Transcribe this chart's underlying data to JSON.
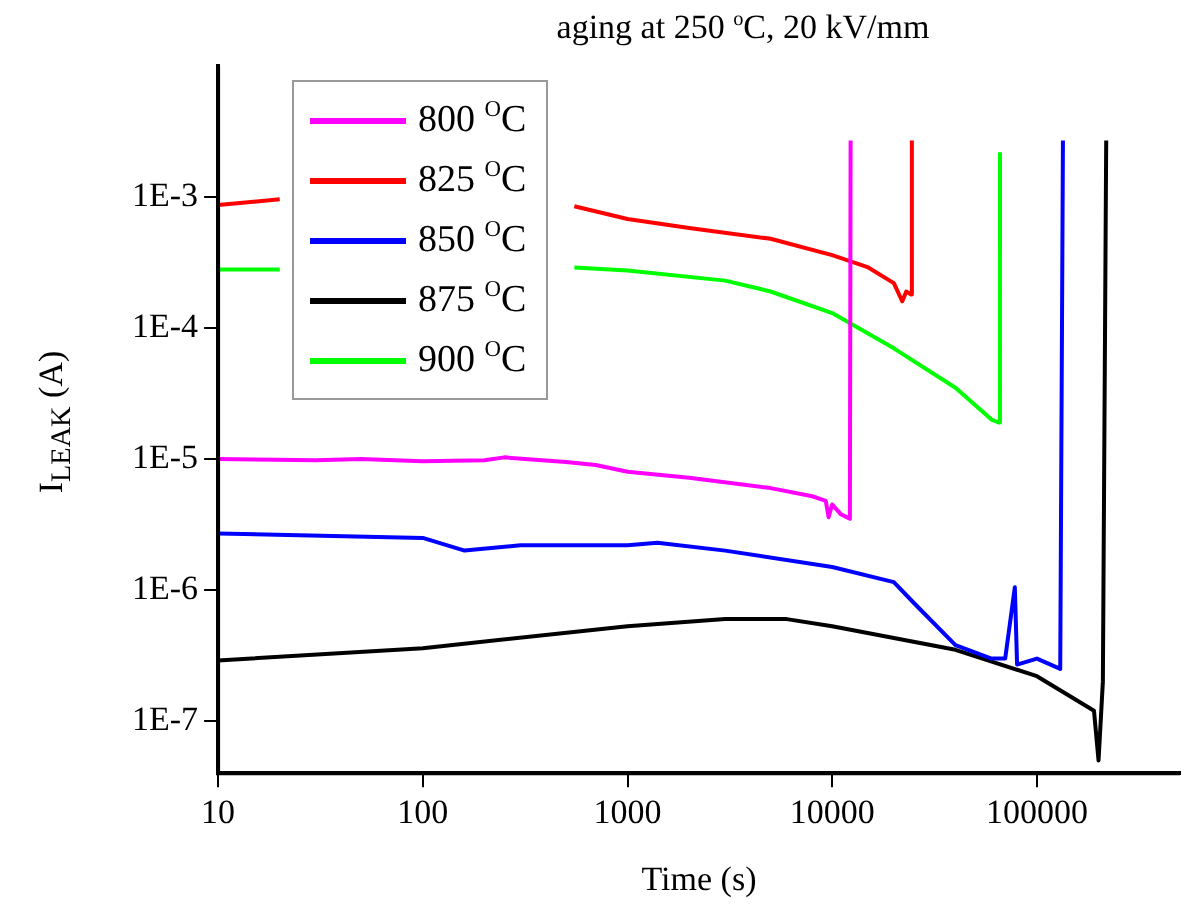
{
  "chart_data": {
    "type": "line",
    "title": "aging at 250 $^{o}$C,  20 kV/mm",
    "xlabel": "Time (s)",
    "ylabel": "I$_{LEAK}$ (A)",
    "log": "xy",
    "xlim": [
      10,
      500000
    ],
    "xticks": [
      10,
      100,
      1000,
      10000,
      100000
    ],
    "ylim": [
      4e-08,
      0.01
    ],
    "yticks": [
      {
        "value": 0.001,
        "label": "1E-3"
      },
      {
        "value": 0.0001,
        "label": "1E-4"
      },
      {
        "value": 1e-05,
        "label": "1E-5"
      },
      {
        "value": 1e-06,
        "label": "1E-6"
      },
      {
        "value": 1e-07,
        "label": "1E-7"
      }
    ],
    "grid": false,
    "legend": "top left",
    "marker": "none",
    "line_style": "solid",
    "series": [
      {
        "name": "800 $^{O}$C",
        "color": "#ff00ff",
        "x": [
          10,
          30,
          50,
          100,
          200,
          250,
          500,
          700,
          1000,
          2000,
          5000,
          8000,
          9300,
          9600,
          10000,
          11000,
          12200,
          12300
        ],
        "values": [
          1e-05,
          9.8e-06,
          1e-05,
          9.6e-06,
          9.8e-06,
          1.03e-05,
          9.5e-06,
          9e-06,
          8e-06,
          7.2e-06,
          6e-06,
          5.2e-06,
          4.8e-06,
          3.6e-06,
          4.5e-06,
          3.8e-06,
          3.5e-06,
          0.0027
        ]
      },
      {
        "name": "825 $^{O}$C",
        "color": "#ff0000",
        "x": [
          10,
          20,
          100,
          550,
          1000,
          2000,
          5000,
          10000,
          15000,
          20000,
          22000,
          23000,
          24300,
          24500
        ],
        "values": [
          0.00087,
          0.00096,
          null,
          0.00085,
          0.00068,
          0.00058,
          0.00048,
          0.00036,
          0.00029,
          0.00022,
          0.00016,
          0.00019,
          0.00018,
          0.0027
        ]
      },
      {
        "name": "850 $^{O}$C",
        "color": "#0000ff",
        "x": [
          10,
          100,
          160,
          300,
          1000,
          1400,
          3000,
          10000,
          20000,
          25000,
          40000,
          60000,
          70000,
          78000,
          80000,
          100000,
          130000,
          134000
        ],
        "values": [
          2.7e-06,
          2.5e-06,
          2e-06,
          2.2e-06,
          2.2e-06,
          2.3e-06,
          2e-06,
          1.5e-06,
          1.15e-06,
          8e-07,
          3.8e-07,
          3e-07,
          3e-07,
          1.05e-06,
          2.7e-07,
          3e-07,
          2.5e-07,
          0.0027
        ]
      },
      {
        "name": "875 $^{O}$C",
        "color": "#000000",
        "x": [
          10,
          100,
          1000,
          3000,
          6000,
          10000,
          20000,
          40000,
          100000,
          150000,
          190000,
          200000,
          210000,
          218000
        ],
        "values": [
          2.9e-07,
          3.6e-07,
          5.3e-07,
          6e-07,
          6e-07,
          5.3e-07,
          4.3e-07,
          3.5e-07,
          2.2e-07,
          1.5e-07,
          1.2e-07,
          5e-08,
          2e-07,
          0.0027
        ]
      },
      {
        "name": "900 $^{O}$C",
        "color": "#00ff00",
        "x": [
          10,
          20,
          100,
          550,
          1000,
          3000,
          5000,
          10000,
          20000,
          40000,
          60000,
          65000,
          66000
        ],
        "values": [
          0.00028,
          0.00028,
          null,
          0.00029,
          0.000275,
          0.00023,
          0.00019,
          0.00013,
          7e-05,
          3.5e-05,
          2e-05,
          1.9e-05,
          0.0022
        ]
      }
    ]
  }
}
